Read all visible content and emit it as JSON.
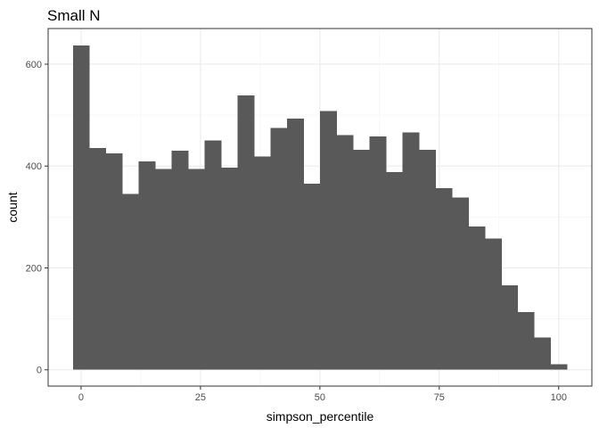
{
  "chart_data": {
    "type": "bar",
    "title": "Small N",
    "xlabel": "simpson_percentile",
    "ylabel": "count",
    "bin_width": 3.45,
    "x_range": [
      -1.72,
      101.78
    ],
    "xlim": [
      -6.9,
      106.95
    ],
    "ylim": [
      -32,
      670
    ],
    "x_ticks": [
      0,
      25,
      50,
      75,
      100
    ],
    "y_ticks": [
      0,
      200,
      400,
      600
    ],
    "grid": true,
    "legend": "none",
    "bar_color": "#595959",
    "values": [
      637,
      435,
      425,
      345,
      409,
      394,
      430,
      394,
      450,
      397,
      539,
      419,
      475,
      493,
      365,
      508,
      461,
      432,
      458,
      388,
      466,
      432,
      357,
      338,
      281,
      258,
      166,
      113,
      63,
      11
    ]
  }
}
